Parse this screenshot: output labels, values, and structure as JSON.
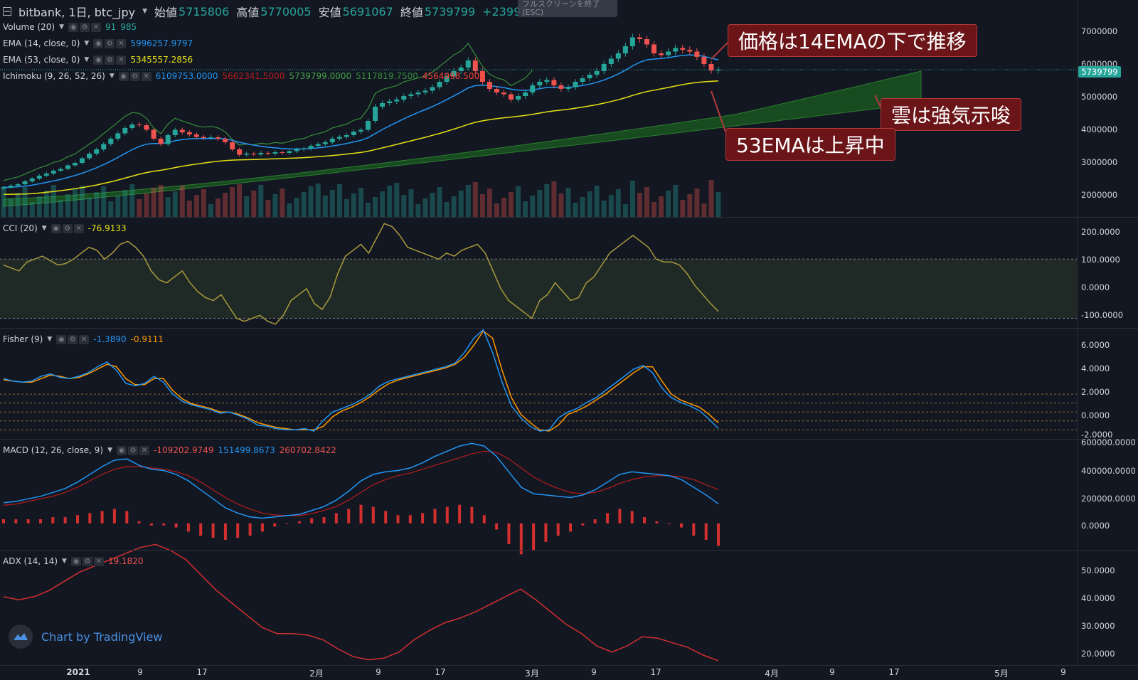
{
  "header": {
    "symbol": "bitbank, 1日, btc_jpy",
    "open_label": "始値",
    "open": "5715806",
    "high_label": "高値",
    "high": "5770005",
    "low_label": "安値",
    "low": "5691067",
    "close_label": "終値",
    "close": "5739799",
    "change": "+23993"
  },
  "esc_hint": {
    "line1": "フルスクリーンを終了",
    "line2": "(ESC)"
  },
  "legends": {
    "volume": {
      "name": "Volume (20)",
      "v1": "91",
      "v2": "985"
    },
    "ema14": {
      "name": "EMA (14, close, 0)",
      "value": "5996257.9797"
    },
    "ema53": {
      "name": "EMA (53, close, 0)",
      "value": "5345557.2856"
    },
    "ichimoku": {
      "name": "Ichimoku (9, 26, 52, 26)",
      "v1": "6109753.0000",
      "v2": "5662341.5000",
      "v3": "5739799.0000",
      "v4": "5117819.7500",
      "v5": "4564998.5000"
    },
    "cci": {
      "name": "CCI (20)",
      "value": "-76.9133"
    },
    "fisher": {
      "name": "Fisher (9)",
      "v1": "-1.3890",
      "v2": "-0.9111"
    },
    "macd": {
      "name": "MACD (12, 26, close, 9)",
      "v1": "-109202.9749",
      "v2": "151499.8673",
      "v3": "260702.8422"
    },
    "adx": {
      "name": "ADX (14, 14)",
      "value": "19.1820"
    }
  },
  "annotations": {
    "a1": "価格は14EMAの下で推移",
    "a2": "雲は強気示唆",
    "a3": "53EMAは上昇中"
  },
  "brand": "Chart by TradingView",
  "price_axis": [
    "7000000",
    "6000000",
    "5000000",
    "4000000",
    "3000000",
    "2000000"
  ],
  "last_price": "5739799",
  "cci_axis": [
    "200.0000",
    "100.0000",
    "0.0000",
    "-100.0000"
  ],
  "fisher_axis": [
    "6.0000",
    "4.0000",
    "2.0000",
    "0.0000",
    "-2.0000"
  ],
  "macd_axis": [
    "600000.0000",
    "400000.0000",
    "200000.0000",
    "0.0000"
  ],
  "adx_axis": [
    "50.0000",
    "40.0000",
    "30.0000",
    "20.0000"
  ],
  "time_axis": [
    "2021",
    "9",
    "17",
    "2月",
    "9",
    "17",
    "3月",
    "9",
    "17",
    "4月",
    "9",
    "17",
    "5月",
    "9"
  ],
  "colors": {
    "bg": "#131722",
    "up": "#26a69a",
    "down": "#ef5350",
    "ema14": "#2196f3",
    "ema53": "#e5e013",
    "cloud": "#1b5e20",
    "cci": "#a89a3c",
    "fisher1": "#2196f3",
    "fisher2": "#ff9800",
    "macd": "#2196f3",
    "signal": "#b71c1c",
    "hist": "#d32f2f",
    "adx": "#d32f2f"
  },
  "chart_data": [
    {
      "type": "candlestick",
      "title": "bitbank, 1日, btc_jpy",
      "ylim": [
        1600000,
        7700000
      ],
      "close": [
        2430000,
        2480000,
        2520000,
        2600000,
        2680000,
        2760000,
        2820000,
        2900000,
        2950000,
        3050000,
        3120000,
        3250000,
        3380000,
        3500000,
        3650000,
        3800000,
        3950000,
        4100000,
        4200000,
        4180000,
        4050000,
        3800000,
        3650000,
        3900000,
        4050000,
        3980000,
        3920000,
        3850000,
        3820000,
        3840000,
        3800000,
        3700000,
        3500000,
        3350000,
        3380000,
        3360000,
        3400000,
        3380000,
        3420000,
        3400000,
        3450000,
        3500000,
        3520000,
        3600000,
        3650000,
        3700000,
        3800000,
        3850000,
        3900000,
        4000000,
        4050000,
        4300000,
        4700000,
        4800000,
        4850000,
        4900000,
        5000000,
        5050000,
        5100000,
        5150000,
        5250000,
        5400000,
        5550000,
        5700000,
        5800000,
        6000000,
        5700000,
        5400000,
        5200000,
        5100000,
        5050000,
        4900000,
        5000000,
        5100000,
        5300000,
        5400000,
        5450000,
        5300000,
        5200000,
        5250000,
        5400000,
        5500000,
        5600000,
        5700000,
        5900000,
        6050000,
        6200000,
        6400000,
        6650000,
        6600000,
        6450000,
        6200000,
        6150000,
        6250000,
        6350000,
        6300000,
        6250000,
        6100000,
        5900000,
        5715806,
        5739799
      ],
      "open": [
        2400000,
        2430000,
        2480000,
        2520000,
        2600000,
        2680000,
        2760000,
        2820000,
        2900000,
        2950000,
        3050000,
        3120000,
        3250000,
        3380000,
        3500000,
        3650000,
        3800000,
        3950000,
        4100000,
        4200000,
        4180000,
        4050000,
        3800000,
        3650000,
        3900000,
        4050000,
        3980000,
        3920000,
        3850000,
        3820000,
        3840000,
        3800000,
        3700000,
        3500000,
        3350000,
        3380000,
        3360000,
        3400000,
        3380000,
        3420000,
        3400000,
        3450000,
        3500000,
        3520000,
        3600000,
        3650000,
        3700000,
        3800000,
        3850000,
        3900000,
        4000000,
        4050000,
        4300000,
        4700000,
        4800000,
        4850000,
        4900000,
        5000000,
        5050000,
        5100000,
        5150000,
        5250000,
        5400000,
        5550000,
        5700000,
        5800000,
        6000000,
        5700000,
        5400000,
        5200000,
        5100000,
        5050000,
        4900000,
        5000000,
        5100000,
        5300000,
        5400000,
        5450000,
        5300000,
        5200000,
        5250000,
        5400000,
        5500000,
        5600000,
        5700000,
        5900000,
        6050000,
        6200000,
        6400000,
        6650000,
        6600000,
        6450000,
        6200000,
        6150000,
        6250000,
        6350000,
        6300000,
        6250000,
        6100000,
        5900000,
        5715806
      ],
      "series": [
        {
          "name": "EMA (14, close, 0)",
          "values_ref": "ema14"
        },
        {
          "name": "EMA (53, close, 0)",
          "values_ref": "ema53"
        }
      ]
    },
    {
      "type": "line",
      "title": "CCI (20)",
      "ylim": [
        -130,
        240
      ],
      "band": [
        -100,
        100
      ],
      "values": [
        80,
        70,
        60,
        90,
        100,
        110,
        95,
        80,
        85,
        100,
        120,
        140,
        130,
        100,
        120,
        150,
        160,
        140,
        110,
        60,
        30,
        20,
        40,
        60,
        20,
        -10,
        -30,
        -40,
        -20,
        -60,
        -100,
        -110,
        -100,
        -90,
        -110,
        -120,
        -90,
        -40,
        -20,
        0,
        -50,
        -70,
        -30,
        50,
        110,
        130,
        150,
        120,
        170,
        220,
        210,
        180,
        140,
        130,
        120,
        110,
        100,
        120,
        110,
        130,
        140,
        150,
        120,
        60,
        0,
        -40,
        -60,
        -80,
        -100,
        -40,
        -20,
        20,
        -10,
        -40,
        -30,
        20,
        40,
        80,
        120,
        140,
        160,
        180,
        160,
        140,
        100,
        90,
        90,
        80,
        50,
        10,
        -20,
        -50,
        -76.9
      ]
    },
    {
      "type": "line",
      "title": "Fisher (9)",
      "ylim": [
        -2.2,
        7
      ],
      "series": [
        {
          "name": "Fisher",
          "values": [
            2.8,
            2.6,
            2.5,
            2.6,
            3,
            3.2,
            2.9,
            2.8,
            3,
            3.3,
            3.8,
            4.2,
            3.5,
            2.4,
            2.2,
            2.4,
            3,
            2.5,
            1.5,
            0.9,
            0.6,
            0.4,
            0.2,
            -0.1,
            0,
            -0.3,
            -0.6,
            -1.1,
            -1.2,
            -1.4,
            -1.5,
            -1.5,
            -1.4,
            -1.6,
            -0.7,
            0,
            0.3,
            0.6,
            1,
            1.5,
            2.2,
            2.6,
            2.8,
            3,
            3.2,
            3.4,
            3.6,
            3.8,
            4.1,
            5,
            6.2,
            6.9,
            5,
            2.5,
            0.5,
            -0.5,
            -1.2,
            -1.6,
            -1.5,
            -0.5,
            0,
            0.3,
            0.8,
            1.2,
            1.8,
            2.4,
            3,
            3.6,
            3.9,
            3.3,
            2,
            1.2,
            0.8,
            0.5,
            0.1,
            -0.6,
            -1.389
          ]
        },
        {
          "name": "Signal",
          "values": [
            2.7,
            2.6,
            2.5,
            2.5,
            2.8,
            3.1,
            3,
            2.8,
            2.9,
            3.2,
            3.6,
            4,
            3.8,
            2.8,
            2.3,
            2.3,
            2.8,
            2.8,
            1.8,
            1.1,
            0.7,
            0.5,
            0.3,
            0,
            0,
            -0.2,
            -0.5,
            -0.9,
            -1.1,
            -1.3,
            -1.4,
            -1.5,
            -1.5,
            -1.5,
            -1.2,
            -0.4,
            0.1,
            0.4,
            0.8,
            1.3,
            1.9,
            2.4,
            2.7,
            2.9,
            3.1,
            3.3,
            3.5,
            3.7,
            4,
            4.6,
            5.6,
            6.8,
            6.2,
            3.5,
            1.2,
            -0.2,
            -0.9,
            -1.5,
            -1.6,
            -1.1,
            -0.2,
            0.1,
            0.5,
            1,
            1.5,
            2.1,
            2.7,
            3.3,
            3.8,
            3.8,
            2.6,
            1.5,
            1,
            0.7,
            0.4,
            -0.2,
            -0.911
          ]
        }
      ]
    },
    {
      "type": "line",
      "title": "MACD (12, 26, close, 9)",
      "ylim": [
        -200000,
        650000
      ],
      "series": [
        {
          "name": "MACD",
          "values": [
            160000,
            170000,
            190000,
            210000,
            240000,
            270000,
            320000,
            380000,
            440000,
            490000,
            500000,
            450000,
            420000,
            410000,
            380000,
            330000,
            260000,
            190000,
            120000,
            80000,
            50000,
            40000,
            50000,
            60000,
            70000,
            100000,
            130000,
            180000,
            250000,
            330000,
            380000,
            400000,
            410000,
            430000,
            470000,
            520000,
            560000,
            600000,
            620000,
            600000,
            520000,
            400000,
            280000,
            230000,
            220000,
            210000,
            200000,
            220000,
            260000,
            320000,
            380000,
            400000,
            390000,
            380000,
            370000,
            340000,
            280000,
            220000,
            151500
          ]
        },
        {
          "name": "Signal",
          "values": [
            140000,
            150000,
            170000,
            190000,
            210000,
            240000,
            280000,
            330000,
            380000,
            420000,
            440000,
            440000,
            430000,
            420000,
            400000,
            370000,
            320000,
            260000,
            200000,
            150000,
            110000,
            80000,
            65000,
            60000,
            60000,
            75000,
            100000,
            130000,
            180000,
            240000,
            300000,
            340000,
            370000,
            390000,
            420000,
            450000,
            480000,
            510000,
            540000,
            560000,
            550000,
            500000,
            430000,
            360000,
            310000,
            270000,
            240000,
            230000,
            240000,
            270000,
            310000,
            340000,
            360000,
            370000,
            370000,
            360000,
            340000,
            300000,
            260703
          ]
        }
      ]
    },
    {
      "type": "line",
      "title": "ADX (14, 14)",
      "ylim": [
        18,
        55
      ],
      "values": [
        40,
        39,
        40,
        42,
        45,
        48,
        50,
        52,
        54,
        56,
        57,
        55,
        52,
        47,
        42,
        38,
        34,
        30,
        28,
        28,
        27.5,
        26,
        23,
        20.5,
        19.5,
        20,
        22,
        26,
        29,
        31.5,
        33,
        35,
        37.5,
        40,
        42.5,
        39,
        35,
        31,
        28,
        24,
        22,
        24,
        27,
        26.5,
        25,
        23.5,
        21,
        19.182
      ]
    }
  ]
}
